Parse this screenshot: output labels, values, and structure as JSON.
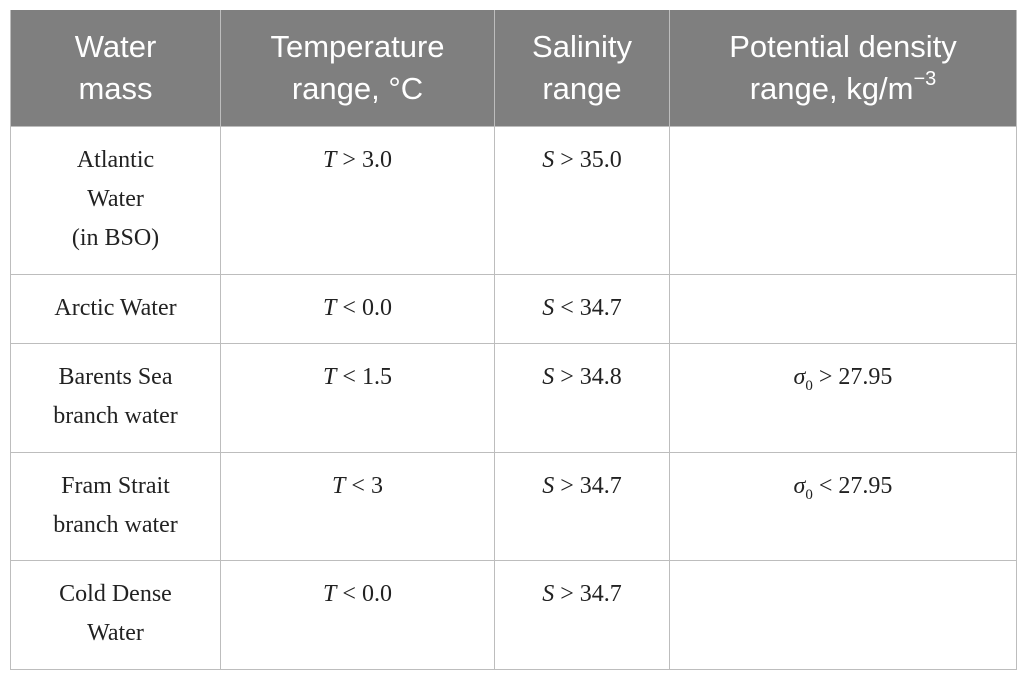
{
  "table": {
    "header": [
      {
        "lines": [
          "Water",
          "mass"
        ]
      },
      {
        "lines": [
          "Temperature",
          "range, °C"
        ]
      },
      {
        "lines": [
          "Salinity",
          "range"
        ]
      },
      {
        "lines": [
          "Potential density",
          "range, kg/m"
        ],
        "superscript": "−3"
      }
    ],
    "rows": [
      {
        "name": [
          "Atlantic",
          "Water",
          "(in BSO)"
        ],
        "temperature": {
          "symbol": "T",
          "condition": " > 3.0"
        },
        "salinity": {
          "symbol": "S",
          "condition": " > 35.0"
        },
        "density": null
      },
      {
        "name": [
          "Arctic Water"
        ],
        "temperature": {
          "symbol": "T",
          "condition": " < 0.0"
        },
        "salinity": {
          "symbol": "S",
          "condition": " < 34.7"
        },
        "density": null
      },
      {
        "name": [
          "Barents Sea",
          "branch water"
        ],
        "temperature": {
          "symbol": "T",
          "condition": " < 1.5"
        },
        "salinity": {
          "symbol": "S",
          "condition": " > 34.8"
        },
        "density": {
          "symbol": "σ",
          "subscript": "0",
          "condition": " > 27.95"
        }
      },
      {
        "name": [
          "Fram Strait",
          "branch water"
        ],
        "temperature": {
          "symbol": "T",
          "condition": " < 3"
        },
        "salinity": {
          "symbol": "S",
          "condition": " > 34.7"
        },
        "density": {
          "symbol": "σ",
          "subscript": "0",
          "condition": " < 27.95"
        }
      },
      {
        "name": [
          "Cold Dense",
          "Water"
        ],
        "temperature": {
          "symbol": "T",
          "condition": " < 0.0"
        },
        "salinity": {
          "symbol": "S",
          "condition": " > 34.7"
        },
        "density": null
      }
    ]
  }
}
